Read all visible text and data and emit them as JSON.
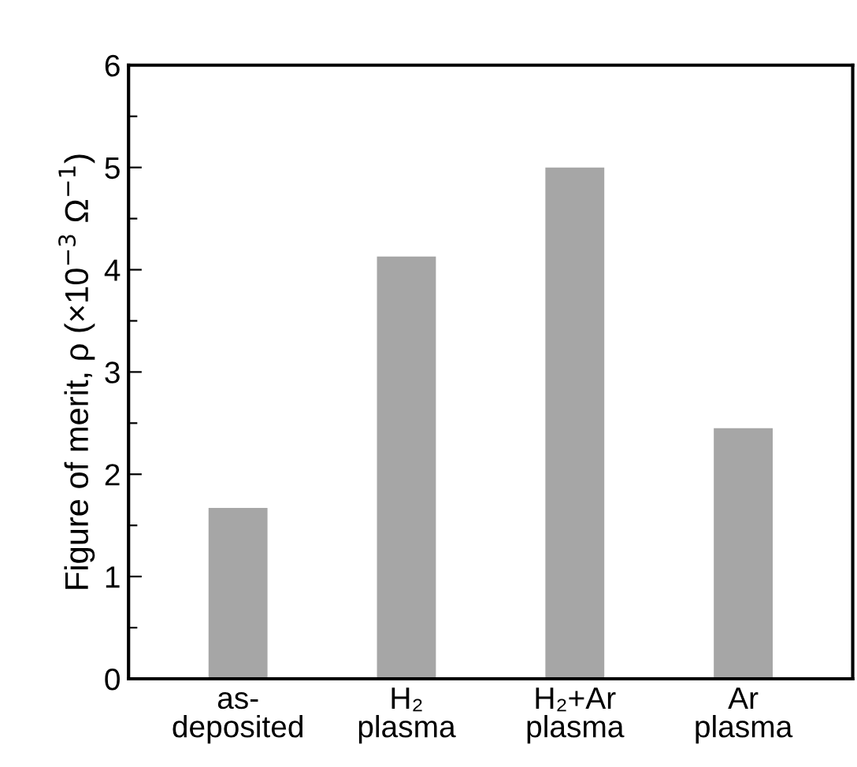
{
  "chart_data": {
    "type": "bar",
    "ylabel": "Figure of merit, ρ (×10$^{−3}$ Ω$^{−1}$)",
    "categories": [
      "as-\ndeposited",
      "H₂\nplasma",
      "H₂+Ar\nplasma",
      "Ar\nplasma"
    ],
    "values": [
      1.67,
      4.13,
      5.0,
      2.45
    ],
    "color": "#a6a6a6",
    "ylim": [
      0,
      6
    ],
    "yticks": [
      0,
      {
        "value": 0.5,
        "label": null
      },
      1,
      {
        "value": 1.5,
        "label": null
      },
      2,
      {
        "value": 2.5,
        "label": null
      },
      3,
      {
        "value": 3.5,
        "label": null
      },
      4,
      {
        "value": 4.5,
        "label": null
      },
      5,
      {
        "value": 5.5,
        "label": null
      },
      6
    ],
    "grid": false
  }
}
